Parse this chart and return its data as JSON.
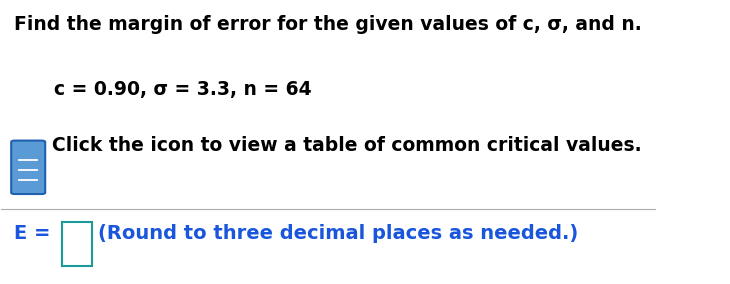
{
  "title_text": "Find the margin of error for the given values of c, σ, and n.",
  "values_text": "c = 0.90, σ = 3.3, n = 64",
  "icon_text": "Click the icon to view a table of common critical values.",
  "answer_label": "E = ",
  "answer_hint": "(Round to three decimal places as needed.)",
  "background_color": "#ffffff",
  "title_color": "#000000",
  "values_color": "#000000",
  "icon_text_color": "#000000",
  "answer_color": "#1a56db",
  "separator_color": "#aaaaaa",
  "box_border_color": "#1a9b9b",
  "icon_blue_dark": "#2060b0",
  "icon_blue_light": "#5b9bd5",
  "title_fontsize": 13.5,
  "values_fontsize": 13.5,
  "icon_text_fontsize": 13.5,
  "answer_fontsize": 14
}
